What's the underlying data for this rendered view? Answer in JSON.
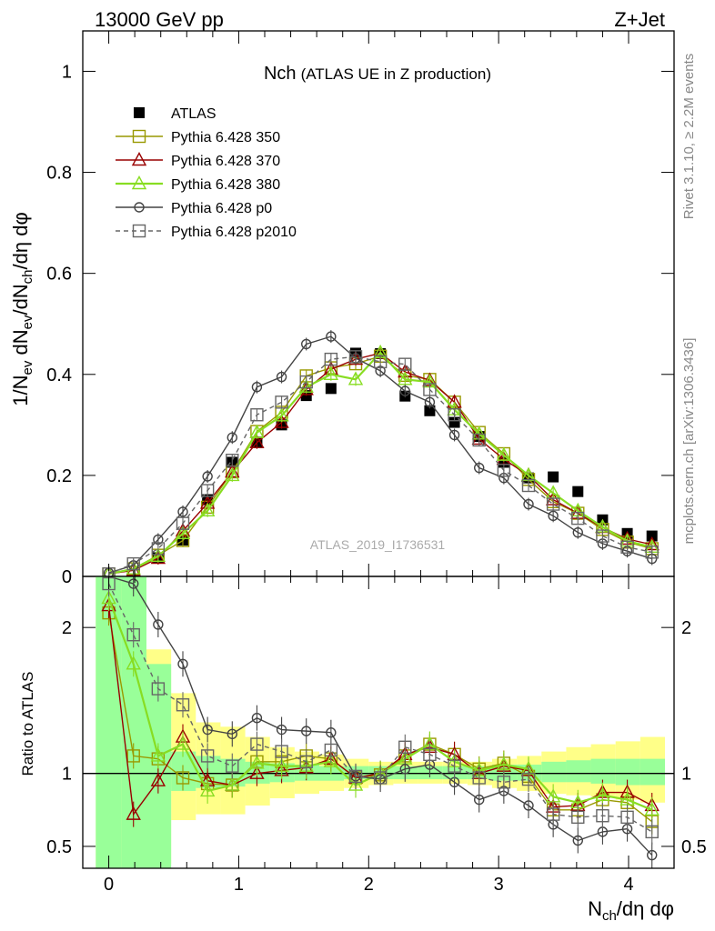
{
  "header": {
    "left": "13000 GeV pp",
    "right": "Z+Jet"
  },
  "side_labels": {
    "rivet": "Rivet 3.1.10, ≥ 2.2M events",
    "mcplots": "mcplots.cern.ch [arXiv:1306.3436]"
  },
  "colors": {
    "atlas": "#000000",
    "p350": "#999900",
    "p370": "#990000",
    "p380": "#88dd22",
    "p0": "#444444",
    "p2010": "#666666",
    "band_inner": "#99ff99",
    "band_outer": "#ffff88"
  },
  "chart_data": [
    {
      "type": "scatter",
      "panel": "main",
      "title": "Nch",
      "subtitle": "(ATLAS UE in Z production)",
      "watermark": "ATLAS_2019_I1736531",
      "ylabel_parts": [
        "1/N",
        "ev",
        " dN",
        "ev",
        "/dN",
        "ch",
        "/dη dφ"
      ],
      "xlim": [
        -0.2,
        4.35
      ],
      "ylim": [
        0,
        1.08
      ],
      "yticks": [
        0,
        0.2,
        0.4,
        0.6,
        0.8,
        1
      ],
      "ytick_labels": [
        "0",
        "0.2",
        "0.4",
        "0.6",
        "0.8",
        "1"
      ],
      "x": [
        0.0,
        0.19,
        0.38,
        0.57,
        0.76,
        0.95,
        1.14,
        1.33,
        1.52,
        1.71,
        1.9,
        2.09,
        2.28,
        2.47,
        2.66,
        2.85,
        3.04,
        3.23,
        3.42,
        3.61,
        3.8,
        3.99,
        4.18
      ],
      "series": [
        {
          "name": "ATLAS",
          "style": "data",
          "color": "#000000",
          "values": [
            null,
            null,
            0.037,
            0.072,
            0.152,
            0.226,
            0.266,
            0.3,
            0.358,
            0.372,
            0.442,
            0.441,
            0.357,
            0.328,
            0.305,
            0.277,
            0.226,
            0.195,
            0.197,
            0.168,
            0.112,
            0.085,
            0.08
          ]
        },
        {
          "name": "Pythia 6.428 350",
          "marker": "square",
          "dash": false,
          "color": "#999900",
          "values": [
            0.005,
            0.015,
            0.042,
            0.071,
            0.137,
            0.207,
            0.287,
            0.325,
            0.397,
            0.413,
            0.421,
            0.436,
            0.398,
            0.39,
            0.345,
            0.285,
            0.243,
            0.192,
            0.148,
            0.125,
            0.093,
            0.068,
            0.055
          ]
        },
        {
          "name": "Pythia 6.428 370",
          "marker": "triangle",
          "dash": false,
          "color": "#990000",
          "values": [
            0.005,
            0.012,
            0.036,
            0.09,
            0.145,
            0.207,
            0.265,
            0.305,
            0.37,
            0.41,
            0.43,
            0.442,
            0.405,
            0.388,
            0.345,
            0.272,
            0.232,
            0.2,
            0.152,
            0.125,
            0.097,
            0.074,
            0.063
          ]
        },
        {
          "name": "Pythia 6.428 380",
          "marker": "triangle",
          "dash": false,
          "color": "#88dd22",
          "values": [
            0.005,
            0.015,
            0.04,
            0.085,
            0.13,
            0.2,
            0.285,
            0.318,
            0.375,
            0.4,
            0.39,
            0.443,
            0.39,
            0.385,
            0.33,
            0.282,
            0.24,
            0.2,
            0.165,
            0.13,
            0.098,
            0.07,
            0.058
          ]
        },
        {
          "name": "Pythia 6.428 p0",
          "marker": "circle",
          "dash": false,
          "color": "#444444",
          "values": [
            0.007,
            0.022,
            0.073,
            0.128,
            0.198,
            0.275,
            0.375,
            0.395,
            0.46,
            0.475,
            0.432,
            0.407,
            0.367,
            0.345,
            0.28,
            0.215,
            0.195,
            0.143,
            0.12,
            0.087,
            0.065,
            0.05,
            0.035
          ]
        },
        {
          "name": "Pythia 6.428 p2010",
          "marker": "square",
          "dash": true,
          "color": "#666666",
          "values": [
            0.005,
            0.025,
            0.055,
            0.105,
            0.17,
            0.23,
            0.32,
            0.345,
            0.385,
            0.43,
            0.435,
            0.425,
            0.42,
            0.37,
            0.32,
            0.27,
            0.21,
            0.18,
            0.143,
            0.115,
            0.08,
            0.058,
            0.048
          ]
        }
      ]
    },
    {
      "type": "scatter",
      "panel": "ratio",
      "ylabel": "Ratio to ATLAS",
      "xlabel_parts": [
        "N",
        "ch",
        "/dη dφ"
      ],
      "xlim": [
        -0.2,
        4.35
      ],
      "ylim": [
        0.35,
        2.35
      ],
      "yticks": [
        0.5,
        1,
        2
      ],
      "ytick_labels": [
        "0.5",
        "1",
        "2"
      ],
      "xticks": [
        0,
        1,
        2,
        3,
        4
      ],
      "xtick_labels": [
        "0",
        "1",
        "2",
        "3",
        "4"
      ],
      "reference_line": 1,
      "x": [
        0.0,
        0.19,
        0.38,
        0.57,
        0.76,
        0.95,
        1.14,
        1.33,
        1.52,
        1.71,
        1.9,
        2.09,
        2.28,
        2.47,
        2.66,
        2.85,
        3.04,
        3.23,
        3.42,
        3.61,
        3.8,
        3.99,
        4.18
      ],
      "band_edges": [
        -0.1,
        0.1,
        0.29,
        0.48,
        0.67,
        0.86,
        1.05,
        1.24,
        1.43,
        1.62,
        1.81,
        2.0,
        2.19,
        2.38,
        2.57,
        2.76,
        2.95,
        3.14,
        3.33,
        3.52,
        3.71,
        3.9,
        4.09,
        4.28
      ],
      "band_inner": [
        [
          0.35,
          2.35
        ],
        [
          0.35,
          2.35
        ],
        [
          0.35,
          1.75
        ],
        [
          0.88,
          1.15
        ],
        [
          0.9,
          1.12
        ],
        [
          0.91,
          1.1
        ],
        [
          0.93,
          1.08
        ],
        [
          0.94,
          1.07
        ],
        [
          0.95,
          1.06
        ],
        [
          0.95,
          1.05
        ],
        [
          0.96,
          1.05
        ],
        [
          0.96,
          1.05
        ],
        [
          0.96,
          1.05
        ],
        [
          0.96,
          1.05
        ],
        [
          0.96,
          1.05
        ],
        [
          0.96,
          1.05
        ],
        [
          0.95,
          1.06
        ],
        [
          0.95,
          1.06
        ],
        [
          0.94,
          1.08
        ],
        [
          0.94,
          1.09
        ],
        [
          0.93,
          1.1
        ],
        [
          0.92,
          1.1
        ],
        [
          0.92,
          1.1
        ]
      ],
      "band_outer": [
        [
          0.35,
          2.35
        ],
        [
          0.38,
          2.35
        ],
        [
          0.38,
          1.85
        ],
        [
          0.68,
          1.55
        ],
        [
          0.72,
          1.35
        ],
        [
          0.72,
          1.32
        ],
        [
          0.78,
          1.25
        ],
        [
          0.83,
          1.18
        ],
        [
          0.86,
          1.15
        ],
        [
          0.88,
          1.13
        ],
        [
          0.9,
          1.1
        ],
        [
          0.92,
          1.08
        ],
        [
          0.93,
          1.08
        ],
        [
          0.93,
          1.08
        ],
        [
          0.93,
          1.08
        ],
        [
          0.92,
          1.08
        ],
        [
          0.9,
          1.1
        ],
        [
          0.88,
          1.12
        ],
        [
          0.86,
          1.15
        ],
        [
          0.85,
          1.18
        ],
        [
          0.84,
          1.2
        ],
        [
          0.82,
          1.22
        ],
        [
          0.8,
          1.25
        ]
      ],
      "series": [
        {
          "name": "Pythia 6.428 350",
          "marker": "square",
          "dash": false,
          "color": "#999900",
          "values": [
            2.1,
            1.12,
            1.1,
            0.97,
            0.93,
            0.92,
            1.08,
            1.08,
            1.12,
            1.1,
            0.97,
            0.99,
            1.12,
            1.2,
            1.13,
            1.03,
            1.07,
            0.98,
            0.75,
            0.75,
            0.82,
            0.8,
            0.67
          ]
        },
        {
          "name": "Pythia 6.428 370",
          "marker": "triangle",
          "dash": false,
          "color": "#990000",
          "values": [
            2.15,
            0.72,
            0.95,
            1.25,
            0.95,
            0.92,
            1.0,
            1.02,
            1.04,
            1.1,
            0.97,
            1.0,
            1.13,
            1.18,
            1.13,
            1.0,
            1.05,
            1.02,
            0.77,
            0.78,
            0.87,
            0.87,
            0.78
          ]
        },
        {
          "name": "Pythia 6.428 380",
          "marker": "triangle",
          "dash": false,
          "color": "#88dd22",
          "values": [
            2.2,
            1.75,
            1.12,
            1.2,
            0.88,
            0.92,
            1.07,
            1.05,
            1.05,
            1.08,
            0.92,
            1.0,
            1.1,
            1.2,
            1.08,
            1.02,
            1.06,
            1.03,
            0.84,
            0.8,
            0.85,
            0.82,
            0.75
          ]
        },
        {
          "name": "Pythia 6.428 p0",
          "marker": "circle",
          "dash": false,
          "color": "#444444",
          "values": [
            2.4,
            2.3,
            2.02,
            1.75,
            1.3,
            1.27,
            1.38,
            1.3,
            1.29,
            1.28,
            0.98,
            0.96,
            1.03,
            1.06,
            0.94,
            0.82,
            0.88,
            0.78,
            0.65,
            0.54,
            0.6,
            0.62,
            0.44
          ]
        },
        {
          "name": "Pythia 6.428 p2010",
          "marker": "square",
          "dash": true,
          "color": "#666666",
          "values": [
            2.3,
            1.95,
            1.58,
            1.47,
            1.12,
            1.05,
            1.2,
            1.15,
            1.08,
            1.16,
            0.98,
            0.97,
            1.18,
            1.13,
            1.05,
            0.97,
            0.94,
            0.96,
            0.72,
            0.7,
            0.71,
            0.7,
            0.6
          ]
        }
      ]
    }
  ]
}
